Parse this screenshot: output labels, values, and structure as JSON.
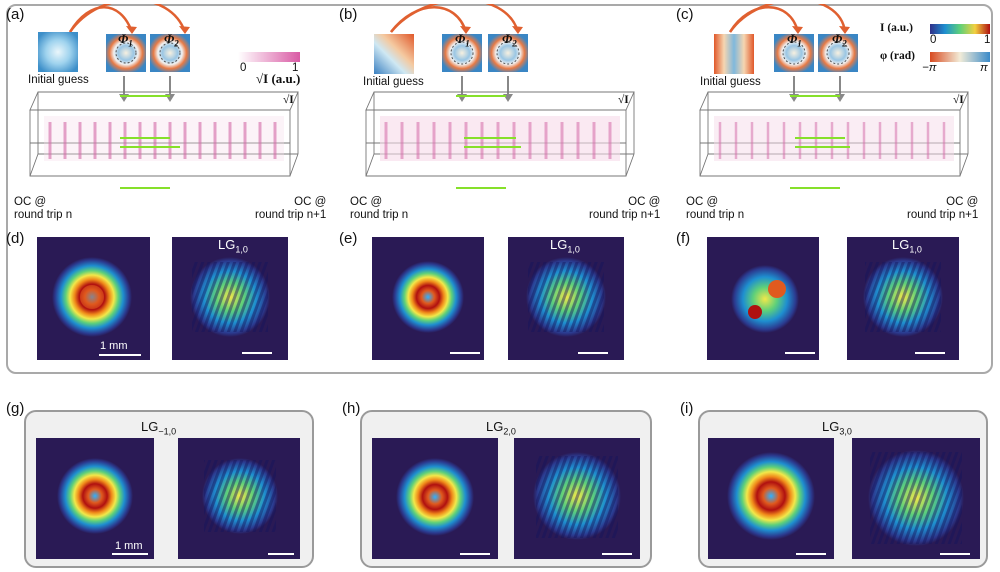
{
  "panels": {
    "a": "(a)",
    "b": "(b)",
    "c": "(c)",
    "d": "(d)",
    "e": "(e)",
    "f": "(f)",
    "g": "(g)",
    "h": "(h)",
    "i": "(i)"
  },
  "initial_guess": "Initial guess",
  "phi1": "Φ",
  "phi1_sub": "1",
  "phi2": "Φ",
  "phi2_sub": "2",
  "sqrt_i_label": "√I (a.u.)",
  "sqrt_i_cube_label": "√I",
  "sqrt_min": "0",
  "sqrt_max": "1",
  "oc_left": [
    "OC @",
    "round trip n"
  ],
  "oc_right": [
    "OC @",
    "round trip n+1"
  ],
  "legend": {
    "i_label": "I (a.u.)",
    "i_min": "0",
    "i_max": "1",
    "phi_label": "φ (rad)",
    "phi_min": "−π",
    "phi_max": "π"
  },
  "lg_labels": {
    "e": {
      "main": "LG",
      "sub": "1,0"
    },
    "d": {
      "main": "LG",
      "sub": "1,0"
    },
    "f": {
      "main": "LG",
      "sub": "1,0"
    },
    "g": {
      "main": "LG",
      "sub": "−1,0"
    },
    "h": {
      "main": "LG",
      "sub": "2,0"
    },
    "i": {
      "main": "LG",
      "sub": "3,0"
    }
  },
  "scale_text": "1 mm",
  "colors": {
    "arrow_orange": "#e06030",
    "green_mark": "#86e02a",
    "pink": "#e68cc0",
    "frame_gray": "#a9a9a9"
  }
}
